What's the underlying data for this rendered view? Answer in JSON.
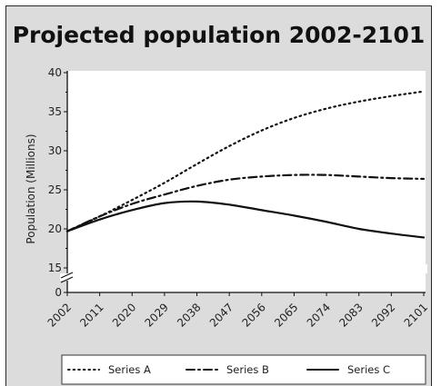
{
  "chart_data": {
    "type": "line",
    "title": "Projected population 2002-2101",
    "xlabel": "",
    "ylabel": "Population (Millions)",
    "x": [
      2002,
      2011,
      2020,
      2029,
      2038,
      2047,
      2056,
      2065,
      2074,
      2083,
      2092,
      2101
    ],
    "y_ticks": [
      0,
      15,
      20,
      25,
      30,
      35,
      40
    ],
    "ylim": [
      15,
      40
    ],
    "axis_break": "between 0 and 15",
    "grid": false,
    "legend_position": "bottom",
    "series": [
      {
        "name": "Series A",
        "style": "dotted",
        "values": [
          19.7,
          21.6,
          23.7,
          25.9,
          28.3,
          30.6,
          32.6,
          34.2,
          35.4,
          36.3,
          37.0,
          37.6
        ]
      },
      {
        "name": "Series B",
        "style": "dash-dot",
        "values": [
          19.7,
          21.6,
          23.2,
          24.4,
          25.5,
          26.3,
          26.7,
          26.9,
          26.9,
          26.7,
          26.5,
          26.4
        ]
      },
      {
        "name": "Series C",
        "style": "solid",
        "values": [
          19.7,
          21.2,
          22.4,
          23.3,
          23.5,
          23.1,
          22.4,
          21.7,
          20.9,
          20.0,
          19.4,
          18.9
        ]
      }
    ]
  },
  "colors": {
    "background": "#dcdcdc",
    "plot_area": "#ffffff",
    "line": "#111111"
  }
}
